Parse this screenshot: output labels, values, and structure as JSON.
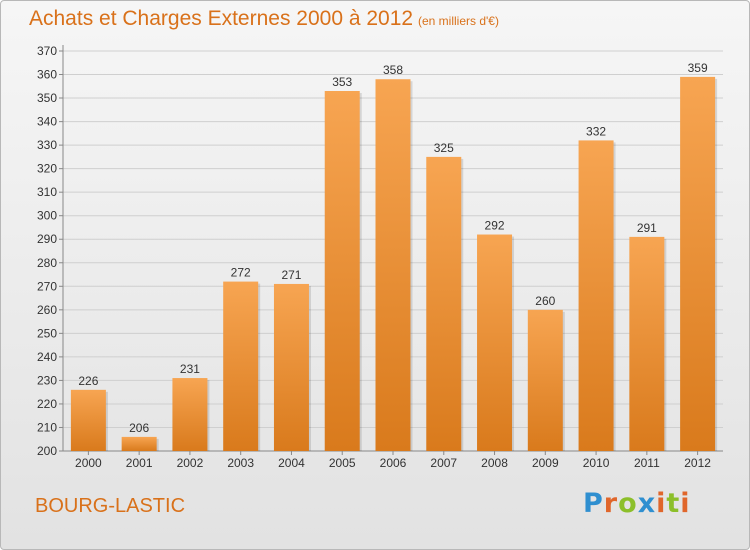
{
  "header": {
    "title": "Achats et Charges Externes 2000 à 2012",
    "subtitle": "(en milliers d'€)"
  },
  "footer": {
    "commune": "BOURG-LASTIC",
    "logo_text": "Proxiti",
    "logo_letters": [
      {
        "ch": "P",
        "color": "#2f8fd0"
      },
      {
        "ch": "r",
        "color": "#e0662b"
      },
      {
        "ch": "o",
        "color": "#8cbf2a"
      },
      {
        "ch": "x",
        "color": "#2f8fd0"
      },
      {
        "ch": "i",
        "color": "#e0662b"
      },
      {
        "ch": "t",
        "color": "#8cbf2a"
      },
      {
        "ch": "i",
        "color": "#e0662b"
      }
    ]
  },
  "colors": {
    "accent": "#d9711a",
    "bar_light": "#f7a552",
    "bar_dark": "#d97a1c",
    "grid": "#cfcfcf"
  },
  "chart_data": {
    "type": "bar",
    "title": "Achats et Charges Externes 2000 à 2012",
    "subtitle": "(en milliers d'€)",
    "categories": [
      "2000",
      "2001",
      "2002",
      "2003",
      "2004",
      "2005",
      "2006",
      "2007",
      "2008",
      "2009",
      "2010",
      "2011",
      "2012"
    ],
    "values": [
      226,
      206,
      231,
      272,
      271,
      353,
      358,
      325,
      292,
      260,
      332,
      291,
      359
    ],
    "ylim": [
      200,
      370
    ],
    "yticks": [
      200,
      210,
      220,
      230,
      240,
      250,
      260,
      270,
      280,
      290,
      300,
      310,
      320,
      330,
      340,
      350,
      360,
      370
    ],
    "grid": true,
    "data_labels": true
  }
}
